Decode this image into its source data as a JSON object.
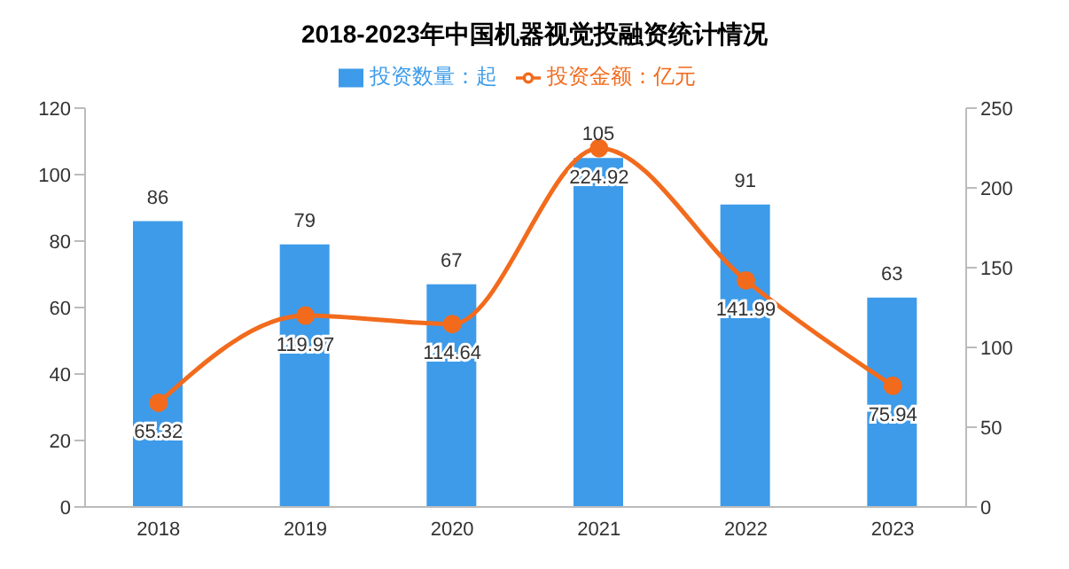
{
  "chart_data": {
    "type": "bar",
    "title": "2018-2023年中国机器视觉投融资统计情况",
    "categories": [
      "2018",
      "2019",
      "2020",
      "2021",
      "2022",
      "2023"
    ],
    "series": [
      {
        "name": "投资数量：起",
        "color": "#3d9be9",
        "values": [
          86,
          79,
          67,
          105,
          91,
          63
        ]
      },
      {
        "name": "投资金额：亿元",
        "type": "line",
        "axis": "y2",
        "color": "#f26b1d",
        "values": [
          65.32,
          119.97,
          114.64,
          224.92,
          141.99,
          75.94
        ]
      }
    ],
    "ylim": [
      0,
      120
    ],
    "yticks": [
      0,
      20,
      40,
      60,
      80,
      100,
      120
    ],
    "y2lim": [
      0,
      250
    ],
    "y2ticks": [
      0,
      50,
      100,
      150,
      200,
      250
    ],
    "data_labels": true,
    "legend": "top",
    "marker": "circle",
    "grid": false
  }
}
